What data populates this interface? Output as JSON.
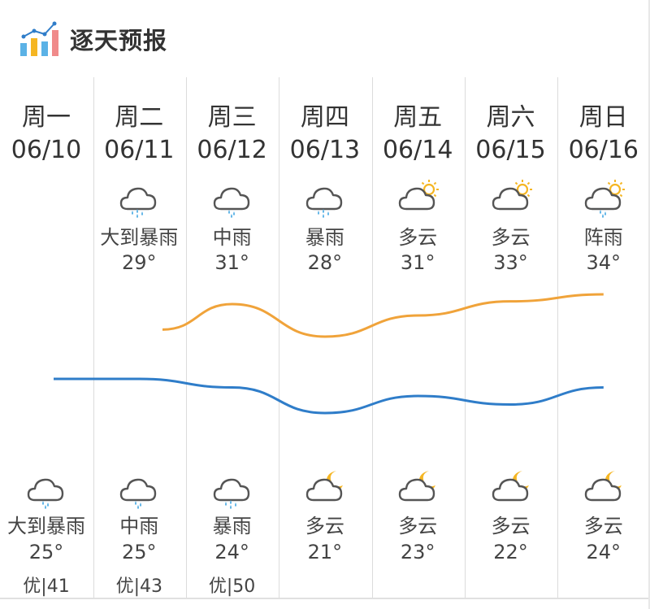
{
  "header": {
    "title": "逐天预报",
    "icon": "bar-chart-icon"
  },
  "colors": {
    "high_curve": "#f0a33a",
    "low_curve": "#2f7dc9",
    "cloud": "#555555",
    "rain": "#5bb2e6",
    "sun": "#f5b623",
    "moon": "#f5b623"
  },
  "days": [
    {
      "weekday": "周一",
      "date": "06/10",
      "day": null,
      "night": {
        "icon": "cloud-rain-icon",
        "desc": "大到暴雨",
        "temp": "25°",
        "low": 25
      },
      "aqi": "优|41"
    },
    {
      "weekday": "周二",
      "date": "06/11",
      "day": {
        "icon": "cloud-rain-heavy-icon",
        "desc": "大到暴雨",
        "temp": "29°",
        "high": 29
      },
      "night": {
        "icon": "cloud-rain-icon",
        "desc": "中雨",
        "temp": "25°",
        "low": 25
      },
      "aqi": "优|43"
    },
    {
      "weekday": "周三",
      "date": "06/12",
      "day": {
        "icon": "cloud-rain-icon",
        "desc": "中雨",
        "temp": "31°",
        "high": 31
      },
      "night": {
        "icon": "cloud-rain-heavy-icon",
        "desc": "暴雨",
        "temp": "24°",
        "low": 24
      },
      "aqi": "优|50"
    },
    {
      "weekday": "周四",
      "date": "06/13",
      "day": {
        "icon": "cloud-rain-heavy-icon",
        "desc": "暴雨",
        "temp": "28°",
        "high": 28
      },
      "night": {
        "icon": "cloud-moon-icon",
        "desc": "多云",
        "temp": "21°",
        "low": 21
      },
      "aqi": ""
    },
    {
      "weekday": "周五",
      "date": "06/14",
      "day": {
        "icon": "cloud-sun-icon",
        "desc": "多云",
        "temp": "31°",
        "high": 31
      },
      "night": {
        "icon": "cloud-moon-icon",
        "desc": "多云",
        "temp": "23°",
        "low": 23
      },
      "aqi": ""
    },
    {
      "weekday": "周六",
      "date": "06/15",
      "day": {
        "icon": "cloud-sun-icon",
        "desc": "多云",
        "temp": "33°",
        "high": 33
      },
      "night": {
        "icon": "cloud-moon-icon",
        "desc": "多云",
        "temp": "22°",
        "low": 22
      },
      "aqi": ""
    },
    {
      "weekday": "周日",
      "date": "06/16",
      "day": {
        "icon": "cloud-sun-rain-icon",
        "desc": "阵雨",
        "temp": "34°",
        "high": 34
      },
      "night": {
        "icon": "cloud-moon-icon",
        "desc": "多云",
        "temp": "24°",
        "low": 24
      },
      "aqi": ""
    }
  ]
}
